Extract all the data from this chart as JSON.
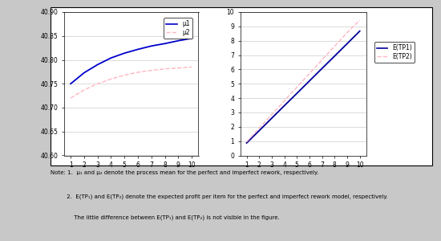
{
  "left_x": [
    1,
    2,
    3,
    4,
    5,
    6,
    7,
    8,
    9,
    10
  ],
  "mu1": [
    40.75,
    40.773,
    40.79,
    40.804,
    40.814,
    40.822,
    40.829,
    40.834,
    40.84,
    40.845
  ],
  "mu2": [
    40.72,
    40.737,
    40.75,
    40.76,
    40.768,
    40.774,
    40.778,
    40.781,
    40.783,
    40.785
  ],
  "right_x": [
    1,
    2,
    3,
    4,
    5,
    6,
    7,
    8,
    9,
    10
  ],
  "etp1": [
    0.87,
    1.73,
    2.6,
    3.47,
    4.33,
    5.2,
    6.07,
    6.93,
    7.8,
    8.67
  ],
  "etp2": [
    0.95,
    1.9,
    2.86,
    3.81,
    4.76,
    5.71,
    6.67,
    7.62,
    8.57,
    9.43
  ],
  "left_ylim": [
    40.6,
    40.9
  ],
  "left_yticks": [
    40.6,
    40.65,
    40.7,
    40.75,
    40.8,
    40.85,
    40.9
  ],
  "right_ylim": [
    0,
    10
  ],
  "right_yticks": [
    0,
    1,
    2,
    3,
    4,
    5,
    6,
    7,
    8,
    9,
    10
  ],
  "xticks": [
    1,
    2,
    3,
    4,
    5,
    6,
    7,
    8,
    9,
    10
  ],
  "mu1_color": "#0000cc",
  "mu2_color": "#ffb6c1",
  "etp1_color": "#000099",
  "etp2_color": "#ffb6c1",
  "outer_bg": "#c8c8c8",
  "inner_bg": "#ffffff",
  "plot_bg": "#ffffff",
  "grid_color": "#cccccc",
  "note_line1": "Note: 1.  μ₁ and μ₂ denote the process mean for the perfect and imperfect rework, respectively.",
  "note_line2": "         2.  E(TP₁) and E(TP₂) denote the expected profit per item for the perfect and imperfect rework model, respectively.",
  "note_line3": "             The little difference between E(TP₁) and E(TP₂) is not visible in the figure.",
  "legend_left_labels": [
    "μ1",
    "μ2"
  ],
  "legend_right_labels": [
    "E(TP1)",
    "E(TP2)"
  ]
}
